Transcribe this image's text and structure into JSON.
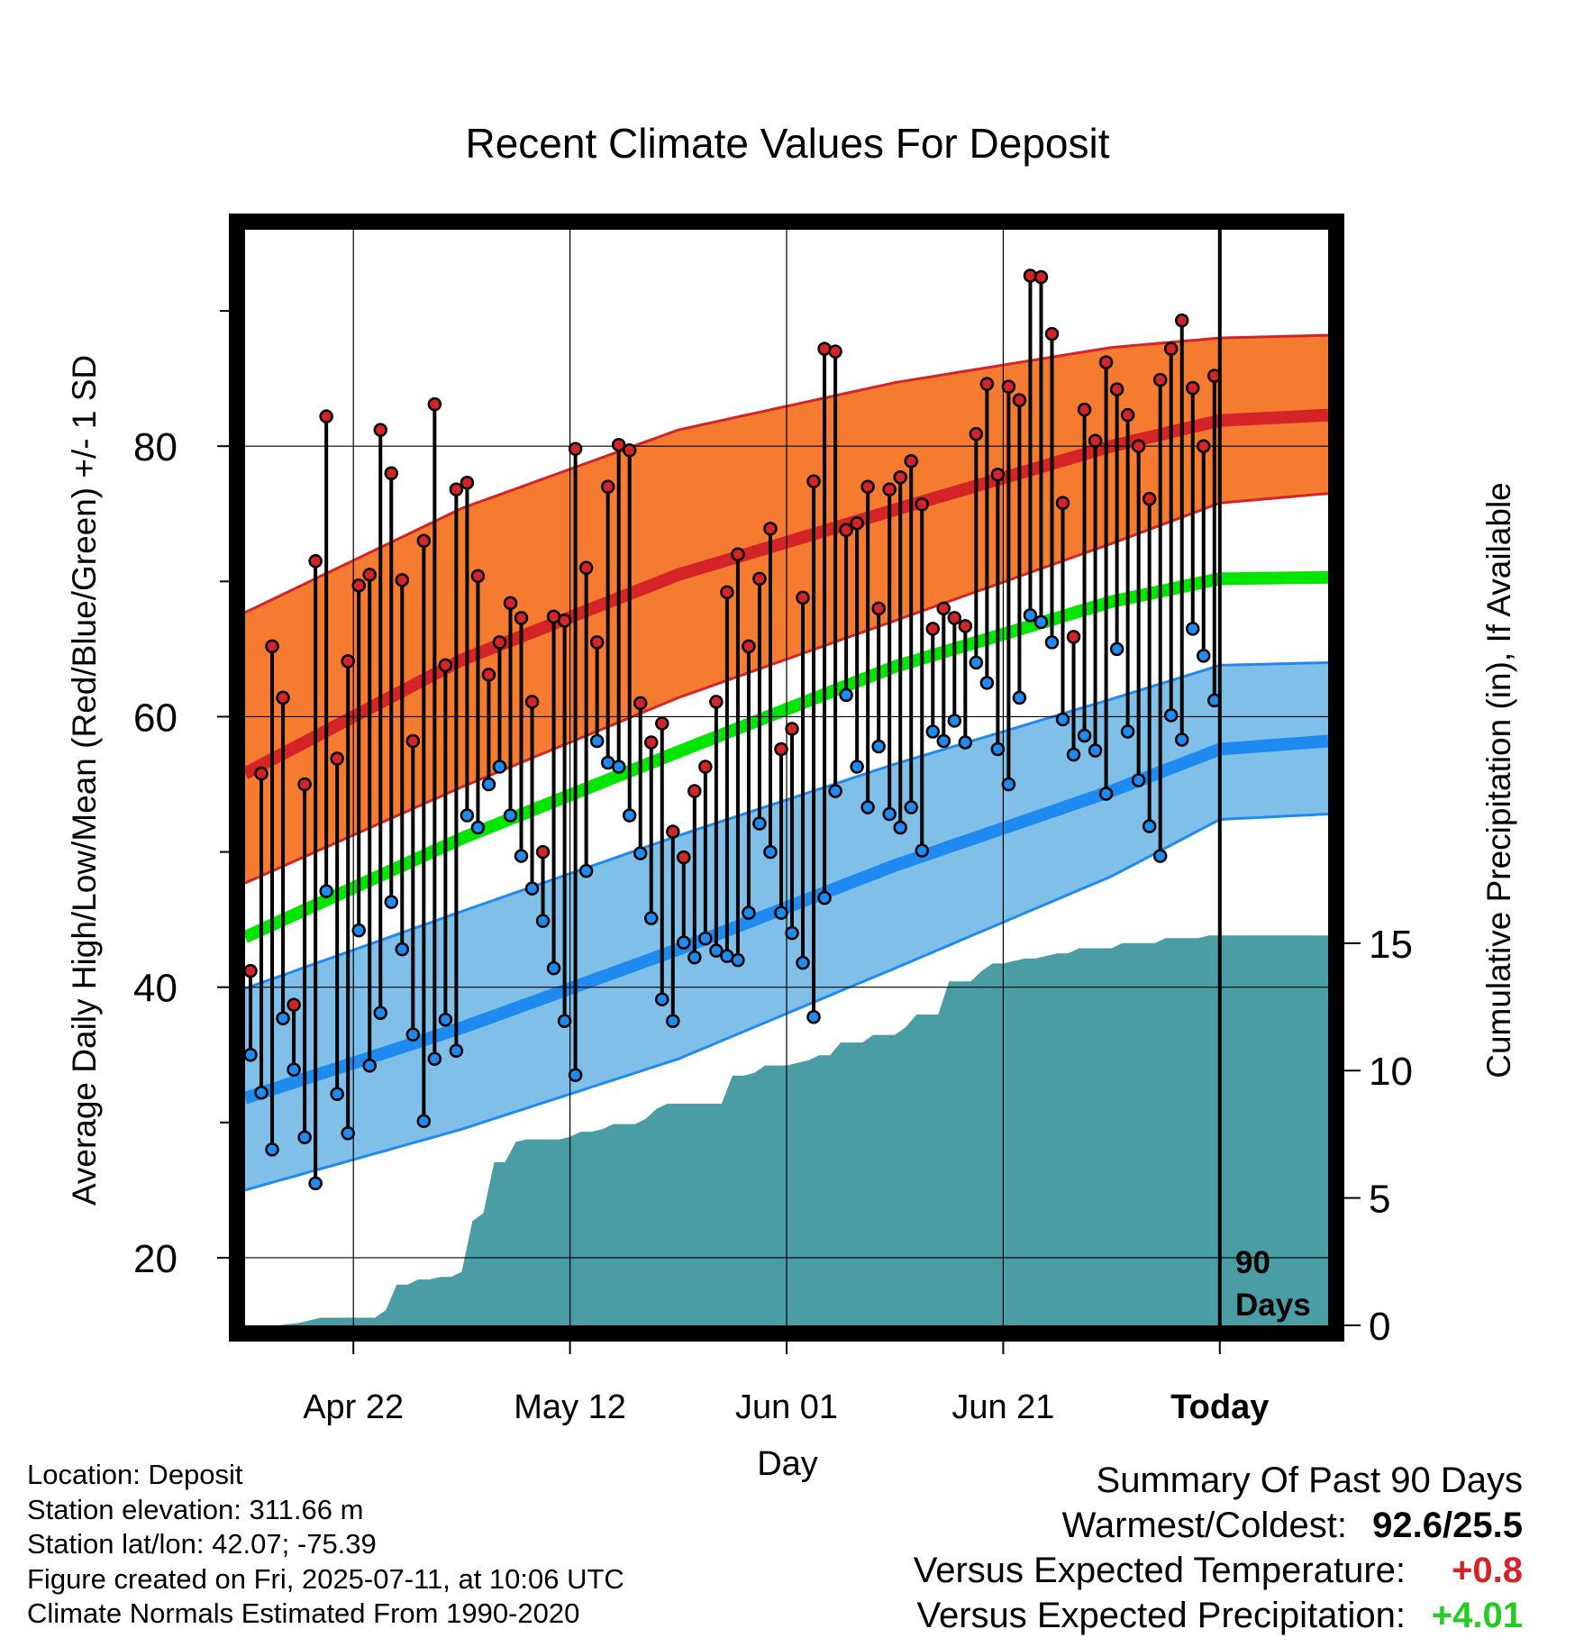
{
  "chart_data": {
    "type": "line",
    "title": "Recent Climate Values For Deposit",
    "xlabel": "Day",
    "ylabel_left": "Average Daily High/Low/Mean (Red/Blue/Green) +/- 1 SD",
    "ylabel_right": "Cumulative Precipitation (in), If Available",
    "x_tick_labels": [
      "Apr 22",
      "May 12",
      "Jun 01",
      "Jun 21",
      "Today"
    ],
    "x_tick_days": [
      10,
      30,
      50,
      70,
      90
    ],
    "x_range_days": [
      0,
      100
    ],
    "y_left_range": [
      15,
      96
    ],
    "y_left_ticks": [
      20,
      40,
      60,
      80
    ],
    "y_right_range": [
      0,
      43
    ],
    "y_right_ticks": [
      0,
      5,
      10,
      15
    ],
    "today_marker": {
      "day": 90,
      "label_line1": "90",
      "label_line2": "Days"
    },
    "colors": {
      "high_band": "#f47b30",
      "high_line": "#d42428",
      "high_edge": "#d42428",
      "low_band": "#7fbfe8",
      "low_line": "#1f8af0",
      "low_edge": "#1f8af0",
      "mean_line": "#00e600",
      "precip": "#4a9ca5",
      "high_dot": "#d42428",
      "low_dot": "#1f8af0"
    },
    "normal_high": {
      "days": [
        0,
        20,
        40,
        60,
        80,
        90,
        100
      ],
      "mean": [
        55.8,
        64.2,
        70.5,
        75.3,
        80.0,
        81.9,
        82.3
      ],
      "sd_upper": [
        67.7,
        75.4,
        81.2,
        84.7,
        87.3,
        88.0,
        88.2
      ],
      "sd_lower": [
        47.7,
        54.8,
        61.4,
        67.1,
        72.8,
        75.8,
        76.5
      ]
    },
    "normal_low": {
      "days": [
        0,
        20,
        40,
        60,
        80,
        90,
        100
      ],
      "mean": [
        31.8,
        37.0,
        42.8,
        49.0,
        54.5,
        57.6,
        58.2
      ],
      "sd_upper": [
        39.9,
        45.6,
        51.2,
        56.5,
        61.3,
        63.8,
        64.0
      ],
      "sd_lower": [
        25.0,
        29.5,
        34.7,
        41.4,
        48.2,
        52.4,
        52.8
      ]
    },
    "normal_mean": {
      "days": [
        0,
        20,
        40,
        60,
        80,
        90,
        100
      ],
      "values": [
        43.7,
        51.0,
        57.4,
        63.7,
        68.5,
        70.2,
        70.3
      ]
    },
    "daily_high": [
      41.2,
      55.8,
      65.2,
      61.4,
      38.7,
      55.0,
      71.5,
      82.2,
      56.9,
      64.1,
      69.7,
      70.5,
      81.2,
      78.0,
      70.1,
      58.2,
      73.0,
      83.1,
      63.8,
      76.8,
      77.3,
      70.4,
      63.1,
      65.5,
      68.4,
      67.3,
      61.1,
      50.0,
      67.4,
      67.1,
      79.8,
      71.0,
      65.5,
      77.0,
      80.1,
      79.7,
      61.0,
      58.1,
      59.5,
      51.5,
      49.6,
      54.5,
      56.3,
      61.1,
      69.2,
      72.0,
      65.2,
      70.2,
      73.9,
      57.6,
      59.1,
      68.8,
      77.4,
      87.2,
      87.0,
      73.8,
      74.3,
      77.0,
      68.0,
      76.8,
      77.7,
      78.9,
      75.7,
      66.5,
      68.0,
      67.3,
      66.7,
      80.9,
      84.6,
      77.9,
      84.4,
      83.4,
      92.6,
      92.5,
      88.3,
      75.8,
      65.9,
      82.7,
      80.4,
      86.2,
      84.2,
      82.3,
      80.0,
      76.1,
      84.9,
      87.2,
      89.3,
      84.3,
      80.0,
      85.2
    ],
    "daily_low": [
      35.0,
      32.2,
      28.0,
      37.7,
      33.9,
      28.9,
      25.5,
      47.1,
      32.1,
      29.2,
      44.2,
      34.2,
      38.1,
      46.3,
      42.8,
      36.5,
      30.1,
      34.7,
      37.6,
      35.3,
      52.7,
      51.8,
      55.0,
      56.3,
      52.7,
      49.7,
      47.3,
      44.9,
      41.4,
      37.5,
      33.5,
      48.6,
      58.2,
      56.6,
      56.3,
      52.7,
      49.9,
      45.1,
      39.1,
      37.5,
      43.3,
      42.2,
      43.6,
      42.7,
      42.3,
      42.0,
      45.5,
      52.1,
      50.0,
      45.5,
      44.0,
      41.8,
      37.8,
      46.6,
      54.5,
      61.6,
      56.3,
      53.3,
      57.8,
      52.8,
      51.8,
      53.3,
      50.1,
      58.9,
      58.2,
      59.7,
      58.1,
      64.0,
      62.5,
      57.6,
      55.0,
      61.4,
      67.5,
      67.0,
      65.5,
      59.8,
      57.2,
      58.6,
      57.5,
      54.3,
      65.0,
      58.9,
      55.3,
      51.9,
      49.7,
      60.1,
      58.3,
      66.5,
      64.5,
      61.2
    ],
    "cumulative_precip": {
      "days": [
        0,
        3,
        5,
        7,
        9,
        11,
        12,
        13,
        14,
        15,
        16,
        17,
        18,
        19,
        20,
        21,
        22,
        23,
        24,
        25,
        26,
        27,
        28,
        29,
        30,
        31,
        32,
        33,
        34,
        35,
        36,
        37,
        38,
        39,
        40,
        41,
        42,
        43,
        44,
        45,
        46,
        47,
        48,
        49,
        50,
        51,
        52,
        53,
        54,
        55,
        56,
        57,
        58,
        59,
        60,
        61,
        62,
        63,
        64,
        65,
        66,
        67,
        68,
        69,
        70,
        71,
        72,
        73,
        74,
        75,
        76,
        77,
        78,
        79,
        80,
        81,
        82,
        83,
        84,
        85,
        86,
        87,
        88,
        89,
        90,
        91,
        100
      ],
      "values": [
        0.0,
        0.0,
        0.1,
        0.3,
        0.3,
        0.3,
        0.3,
        0.6,
        1.6,
        1.6,
        1.8,
        1.8,
        1.9,
        1.9,
        2.1,
        4.1,
        4.4,
        6.4,
        6.4,
        7.2,
        7.3,
        7.3,
        7.3,
        7.3,
        7.4,
        7.6,
        7.6,
        7.7,
        7.9,
        7.9,
        7.9,
        8.1,
        8.5,
        8.7,
        8.7,
        8.7,
        8.7,
        8.7,
        8.7,
        9.8,
        9.8,
        9.9,
        10.2,
        10.2,
        10.2,
        10.3,
        10.4,
        10.6,
        10.6,
        11.1,
        11.1,
        11.1,
        11.4,
        11.4,
        11.4,
        11.7,
        12.2,
        12.2,
        12.2,
        13.5,
        13.5,
        13.5,
        13.9,
        14.2,
        14.2,
        14.3,
        14.4,
        14.4,
        14.5,
        14.6,
        14.6,
        14.8,
        14.8,
        14.8,
        14.8,
        15.0,
        15.0,
        15.0,
        15.0,
        15.2,
        15.2,
        15.2,
        15.2,
        15.3,
        15.3,
        15.3,
        15.3
      ]
    }
  },
  "footer": {
    "location": "Location: Deposit",
    "elevation": "Station elevation: 311.66 m",
    "latlon": "Station lat/lon: 42.07; -75.39",
    "created": "Figure created on Fri, 2025-07-11, at 10:06 UTC",
    "normals": "Climate Normals Estimated From 1990-2020"
  },
  "summary": {
    "title": "Summary Of Past 90 Days",
    "warmest_coldest_label": "Warmest/Coldest:",
    "warmest_coldest_value": "92.6/25.5",
    "temp_label": "Versus Expected Temperature:",
    "temp_value": "+0.8",
    "temp_color": "#d42428",
    "precip_label": "Versus Expected Precipitation:",
    "precip_value": "+4.01",
    "precip_color": "#22cc22"
  }
}
